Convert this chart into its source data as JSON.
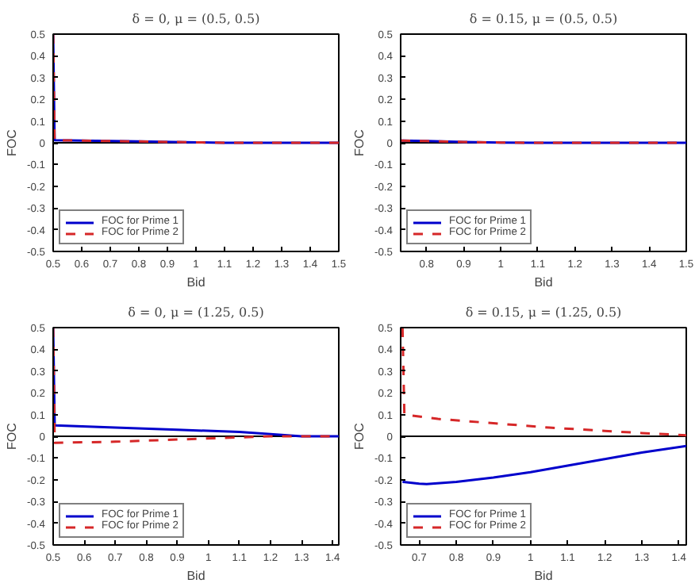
{
  "chart_data": [
    {
      "type": "line",
      "title": "δ = 0, μ = (0.5, 0.5)",
      "xlabel": "Bid",
      "ylabel": "FOC",
      "xlim": [
        0.5,
        1.5
      ],
      "ylim": [
        -0.5,
        0.5
      ],
      "xticks": [
        0.5,
        0.6,
        0.7,
        0.8,
        0.9,
        1,
        1.1,
        1.2,
        1.3,
        1.4,
        1.5
      ],
      "yticks": [
        -0.5,
        -0.4,
        -0.3,
        -0.2,
        -0.1,
        0,
        0.1,
        0.2,
        0.3,
        0.4,
        0.5
      ],
      "grid": false,
      "legend": "bottom left",
      "ref_lines": [
        {
          "axis": "y",
          "value": 0,
          "color": "#000000"
        }
      ],
      "series": [
        {
          "name": "FOC for Prime 1",
          "color": "#0000cc",
          "line_style": "solid",
          "x": [
            0.5,
            0.505,
            0.6,
            0.8,
            1.0,
            1.1,
            1.5
          ],
          "values": [
            0.5,
            0.012,
            0.01,
            0.006,
            0.002,
            0,
            0
          ]
        },
        {
          "name": "FOC for Prime 2",
          "color": "#d62728",
          "line_style": "dashed",
          "x": [
            0.5,
            0.505,
            0.6,
            0.8,
            1.0,
            1.1,
            1.5
          ],
          "values": [
            0.5,
            0.012,
            0.01,
            0.006,
            0.002,
            0,
            0
          ]
        }
      ]
    },
    {
      "type": "line",
      "title": "δ = 0.15, μ = (0.5, 0.5)",
      "xlabel": "Bid",
      "ylabel": "FOC",
      "xlim": [
        0.73,
        1.5
      ],
      "ylim": [
        -0.5,
        0.5
      ],
      "xticks": [
        0.8,
        0.9,
        1,
        1.1,
        1.2,
        1.3,
        1.4,
        1.5
      ],
      "yticks": [
        -0.5,
        -0.4,
        -0.3,
        -0.2,
        -0.1,
        0,
        0.1,
        0.2,
        0.3,
        0.4,
        0.5
      ],
      "grid": false,
      "legend": "bottom left",
      "ref_lines": [
        {
          "axis": "y",
          "value": 0,
          "color": "#000000"
        }
      ],
      "series": [
        {
          "name": "FOC for Prime 1",
          "color": "#0000cc",
          "line_style": "solid",
          "x": [
            0.73,
            0.8,
            0.9,
            1.0,
            1.1,
            1.5
          ],
          "values": [
            0.01,
            0.008,
            0.004,
            0.001,
            0,
            0
          ]
        },
        {
          "name": "FOC for Prime 2",
          "color": "#d62728",
          "line_style": "dashed",
          "x": [
            0.73,
            0.8,
            0.9,
            1.0,
            1.1,
            1.5
          ],
          "values": [
            0.01,
            0.008,
            0.004,
            0.001,
            0,
            0
          ]
        }
      ]
    },
    {
      "type": "line",
      "title": "δ = 0, μ = (1.25, 0.5)",
      "xlabel": "Bid",
      "ylabel": "FOC",
      "xlim": [
        0.5,
        1.42
      ],
      "ylim": [
        -0.5,
        0.5
      ],
      "xticks": [
        0.5,
        0.6,
        0.7,
        0.8,
        0.9,
        1,
        1.1,
        1.2,
        1.3,
        1.4
      ],
      "yticks": [
        -0.5,
        -0.4,
        -0.3,
        -0.2,
        -0.1,
        0,
        0.1,
        0.2,
        0.3,
        0.4,
        0.5
      ],
      "grid": false,
      "legend": "bottom left",
      "ref_lines": [
        {
          "axis": "y",
          "value": 0,
          "color": "#000000"
        }
      ],
      "series": [
        {
          "name": "FOC for Prime 1",
          "color": "#0000cc",
          "line_style": "solid",
          "x": [
            0.5,
            0.505,
            0.7,
            0.9,
            1.1,
            1.3,
            1.42
          ],
          "values": [
            0.5,
            0.05,
            0.04,
            0.03,
            0.02,
            0,
            0
          ]
        },
        {
          "name": "FOC for Prime 2",
          "color": "#d62728",
          "line_style": "dashed",
          "x": [
            0.5,
            0.505,
            0.7,
            0.9,
            1.1,
            1.2,
            1.42
          ],
          "values": [
            0.5,
            -0.03,
            -0.025,
            -0.015,
            -0.005,
            0,
            0
          ]
        }
      ]
    },
    {
      "type": "line",
      "title": "δ = 0.15, μ = (1.25, 0.5)",
      "xlabel": "Bid",
      "ylabel": "FOC",
      "xlim": [
        0.65,
        1.42
      ],
      "ylim": [
        -0.5,
        0.5
      ],
      "xticks": [
        0.7,
        0.8,
        0.9,
        1,
        1.1,
        1.2,
        1.3,
        1.4
      ],
      "yticks": [
        -0.5,
        -0.4,
        -0.3,
        -0.2,
        -0.1,
        0,
        0.1,
        0.2,
        0.3,
        0.4,
        0.5
      ],
      "grid": false,
      "legend": "bottom left",
      "ref_lines": [
        {
          "axis": "y",
          "value": 0,
          "color": "#000000"
        }
      ],
      "series": [
        {
          "name": "FOC for Prime 1",
          "color": "#0000cc",
          "line_style": "solid",
          "x": [
            0.655,
            0.7,
            0.72,
            0.8,
            0.9,
            1.0,
            1.1,
            1.2,
            1.3,
            1.42
          ],
          "values": [
            -0.21,
            -0.218,
            -0.22,
            -0.21,
            -0.19,
            -0.165,
            -0.135,
            -0.105,
            -0.075,
            -0.045
          ]
        },
        {
          "name": "FOC for Prime 2",
          "color": "#d62728",
          "line_style": "dashed",
          "x": [
            0.655,
            0.66,
            0.75,
            0.9,
            1.05,
            1.2,
            1.3,
            1.42
          ],
          "values": [
            0.5,
            0.1,
            0.08,
            0.06,
            0.04,
            0.025,
            0.015,
            0.005
          ]
        }
      ]
    }
  ]
}
